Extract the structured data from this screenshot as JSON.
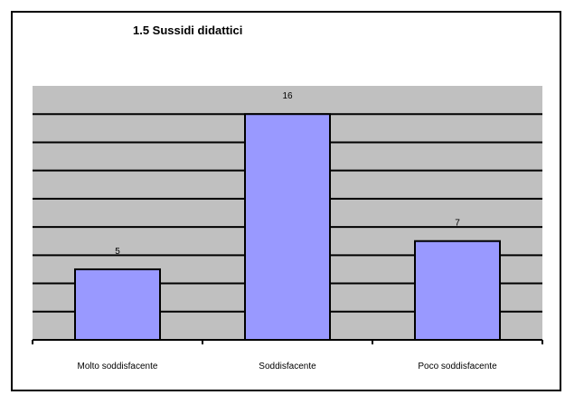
{
  "chart_data": {
    "type": "bar",
    "title": "1.5 Sussidi didattici",
    "categories": [
      "Molto soddisfacente",
      "Soddisfacente",
      "Poco soddisfacente"
    ],
    "values": [
      5,
      16,
      7
    ],
    "ylim": [
      0,
      18
    ],
    "gridlines": true,
    "legend": "none",
    "colors": {
      "bar": "#9999ff",
      "plot_background": "#c0c0c0",
      "gridline": "#000000"
    }
  }
}
